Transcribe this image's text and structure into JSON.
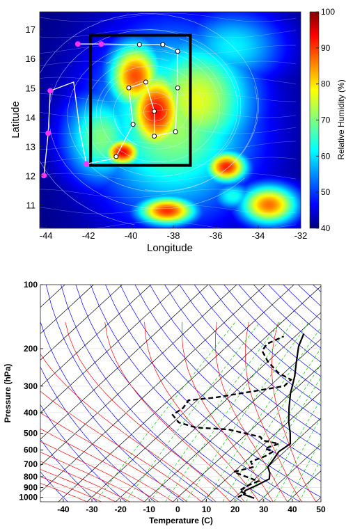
{
  "chart_data": [
    {
      "type": "heatmap",
      "title": "",
      "xlabel": "Longitude",
      "ylabel": "Latitude",
      "xlim": [
        -44.3,
        -32
      ],
      "ylim": [
        10.2,
        17.6
      ],
      "x_ticks": [
        -44,
        -42,
        -40,
        -38,
        -36,
        -34,
        -32
      ],
      "x_tick_labels": [
        "-44",
        "-42",
        "-40",
        "-38",
        "-36",
        "-34",
        "-32"
      ],
      "y_ticks": [
        11,
        12,
        13,
        14,
        15,
        16,
        17
      ],
      "y_tick_labels": [
        "11",
        "12",
        "13",
        "14",
        "15",
        "16",
        "17"
      ],
      "colorbar": {
        "label": "Relative Humidity (%)",
        "range": [
          40,
          100
        ],
        "ticks": [
          40,
          50,
          60,
          70,
          80,
          90,
          100
        ],
        "tick_labels": [
          "40",
          "50",
          "60",
          "70",
          "80",
          "90",
          "100"
        ],
        "colormap": "jet"
      },
      "humid_blobs": [
        {
          "lon": -38.8,
          "lat": 14.2,
          "rh": 92,
          "sx": 1.4,
          "sy": 1.5
        },
        {
          "lon": -39.8,
          "lat": 15.4,
          "rh": 88,
          "sx": 1.3,
          "sy": 1.2
        },
        {
          "lon": -36.9,
          "lat": 14.6,
          "rh": 76,
          "sx": 2.8,
          "sy": 2.2
        },
        {
          "lon": -35.2,
          "lat": 16.4,
          "rh": 62,
          "sx": 2.5,
          "sy": 1.3
        },
        {
          "lon": -41.4,
          "lat": 13.3,
          "rh": 70,
          "sx": 1.8,
          "sy": 1.6
        },
        {
          "lon": -40.4,
          "lat": 12.8,
          "rh": 93,
          "sx": 0.9,
          "sy": 0.5
        },
        {
          "lon": -35.5,
          "lat": 12.3,
          "rh": 91,
          "sx": 1.0,
          "sy": 0.55
        },
        {
          "lon": -38.3,
          "lat": 10.8,
          "rh": 90,
          "sx": 1.4,
          "sy": 0.5
        },
        {
          "lon": -33.5,
          "lat": 11.0,
          "rh": 86,
          "sx": 1.4,
          "sy": 0.7
        },
        {
          "lon": -35.2,
          "lat": 11.3,
          "rh": 64,
          "sx": 1.0,
          "sy": 0.5
        },
        {
          "lon": -38.0,
          "lat": 13.8,
          "rh": 72,
          "sx": 3.8,
          "sy": 3.2
        }
      ],
      "box": {
        "lon_min": -41.9,
        "lon_max": -37.2,
        "lat_min": 12.35,
        "lat_max": 16.8,
        "color": "#000000"
      },
      "dropsondes_magenta": [
        {
          "lon": -44.1,
          "lat": 12.0
        },
        {
          "lon": -43.9,
          "lat": 13.45
        },
        {
          "lon": -43.8,
          "lat": 14.9
        },
        {
          "lon": -42.5,
          "lat": 16.5
        },
        {
          "lon": -41.4,
          "lat": 16.5
        },
        {
          "lon": -42.1,
          "lat": 12.4
        }
      ],
      "track_magenta": [
        {
          "lon": -44.1,
          "lat": 12.0
        },
        {
          "lon": -43.9,
          "lat": 13.45
        },
        {
          "lon": -43.8,
          "lat": 14.9
        },
        {
          "lon": -42.7,
          "lat": 15.2
        },
        {
          "lon": -42.4,
          "lat": 13.5
        },
        {
          "lon": -42.1,
          "lat": 12.4
        },
        {
          "lon": -40.7,
          "lat": 12.6
        }
      ],
      "dropsondes_white": [
        {
          "lon": -39.6,
          "lat": 16.48
        },
        {
          "lon": -38.5,
          "lat": 16.48
        },
        {
          "lon": -37.8,
          "lat": 16.25
        },
        {
          "lon": -37.8,
          "lat": 15.0
        },
        {
          "lon": -38.9,
          "lat": 14.2
        },
        {
          "lon": -39.3,
          "lat": 15.2
        },
        {
          "lon": -40.1,
          "lat": 15.0
        },
        {
          "lon": -39.9,
          "lat": 13.75
        },
        {
          "lon": -37.9,
          "lat": 13.5
        },
        {
          "lon": -38.9,
          "lat": 13.35
        },
        {
          "lon": -40.7,
          "lat": 12.65
        }
      ],
      "track_white": [
        {
          "lon": -42.5,
          "lat": 16.5
        },
        {
          "lon": -41.4,
          "lat": 16.5
        },
        {
          "lon": -39.6,
          "lat": 16.48
        },
        {
          "lon": -38.5,
          "lat": 16.48
        },
        {
          "lon": -37.8,
          "lat": 16.25
        },
        {
          "lon": -37.8,
          "lat": 15.0
        },
        {
          "lon": -37.9,
          "lat": 13.5
        },
        {
          "lon": -38.9,
          "lat": 13.35
        },
        {
          "lon": -38.9,
          "lat": 14.2
        },
        {
          "lon": -39.3,
          "lat": 15.2
        },
        {
          "lon": -40.1,
          "lat": 15.0
        },
        {
          "lon": -39.9,
          "lat": 13.75
        },
        {
          "lon": -40.7,
          "lat": 12.65
        }
      ],
      "streamline_center": {
        "lon": -38.9,
        "lat": 14.2
      }
    },
    {
      "type": "line",
      "subtype": "skew-T log-P diagram",
      "title": "",
      "xlabel": "Temperature (C)",
      "ylabel": "Pressure (hPa)",
      "xlim": [
        -48,
        50
      ],
      "ylim": [
        1050,
        100
      ],
      "y_scale": "log",
      "x_ticks": [
        -40,
        -30,
        -20,
        -10,
        0,
        10,
        20,
        30,
        40,
        50
      ],
      "x_tick_labels": [
        "-40",
        "-30",
        "-20",
        "-10",
        "0",
        "10",
        "20",
        "30",
        "40",
        "50"
      ],
      "y_ticks": [
        100,
        200,
        300,
        400,
        500,
        600,
        700,
        800,
        900,
        1000
      ],
      "y_tick_labels": [
        "100",
        "200",
        "300",
        "400",
        "500",
        "600",
        "700",
        "800",
        "900",
        "1000"
      ],
      "grid": true,
      "grid_line_colors": {
        "isotherm": "#000000",
        "dry_adiabat": "#0000ff",
        "moist_adiabat": "#ff0000",
        "mixing_ratio": "#00cc00"
      },
      "series": [
        {
          "style": "solid",
          "color": "#000000",
          "points": [
            {
              "t": 27,
              "p": 1010
            },
            {
              "t": 22,
              "p": 970
            },
            {
              "t": 21,
              "p": 930
            },
            {
              "t": 23,
              "p": 880
            },
            {
              "t": 25,
              "p": 820
            },
            {
              "t": 23,
              "p": 770
            },
            {
              "t": 20,
              "p": 720
            },
            {
              "t": 19,
              "p": 660
            },
            {
              "t": 18,
              "p": 610
            },
            {
              "t": 19,
              "p": 560
            },
            {
              "t": 15,
              "p": 500
            },
            {
              "t": 10,
              "p": 440
            },
            {
              "t": 5,
              "p": 380
            },
            {
              "t": 0,
              "p": 325
            },
            {
              "t": -5,
              "p": 270
            },
            {
              "t": -10,
              "p": 230
            },
            {
              "t": -15,
              "p": 195
            },
            {
              "t": -18,
              "p": 170
            }
          ]
        },
        {
          "style": "dashed",
          "color": "#000000",
          "points": [
            {
              "t": 21,
              "p": 1000
            },
            {
              "t": 22,
              "p": 960
            },
            {
              "t": 19,
              "p": 930
            },
            {
              "t": 20,
              "p": 880
            },
            {
              "t": 22,
              "p": 840
            },
            {
              "t": 16,
              "p": 800
            },
            {
              "t": 10,
              "p": 760
            },
            {
              "t": 15,
              "p": 720
            },
            {
              "t": 12,
              "p": 680
            },
            {
              "t": 15,
              "p": 640
            },
            {
              "t": 16,
              "p": 610
            },
            {
              "t": 12,
              "p": 590
            },
            {
              "t": 15,
              "p": 560
            },
            {
              "t": 8,
              "p": 540
            },
            {
              "t": 6,
              "p": 520
            },
            {
              "t": -8,
              "p": 480
            },
            {
              "t": -20,
              "p": 470
            },
            {
              "t": -28,
              "p": 445
            },
            {
              "t": -33,
              "p": 410
            },
            {
              "t": -32,
              "p": 380
            },
            {
              "t": -33,
              "p": 350
            },
            {
              "t": -25,
              "p": 340
            },
            {
              "t": -15,
              "p": 320
            },
            {
              "t": -5,
              "p": 300
            },
            {
              "t": -5,
              "p": 280
            },
            {
              "t": -12,
              "p": 260
            },
            {
              "t": -20,
              "p": 230
            },
            {
              "t": -26,
              "p": 205
            },
            {
              "t": -27,
              "p": 190
            },
            {
              "t": -24,
              "p": 175
            }
          ]
        }
      ]
    }
  ]
}
